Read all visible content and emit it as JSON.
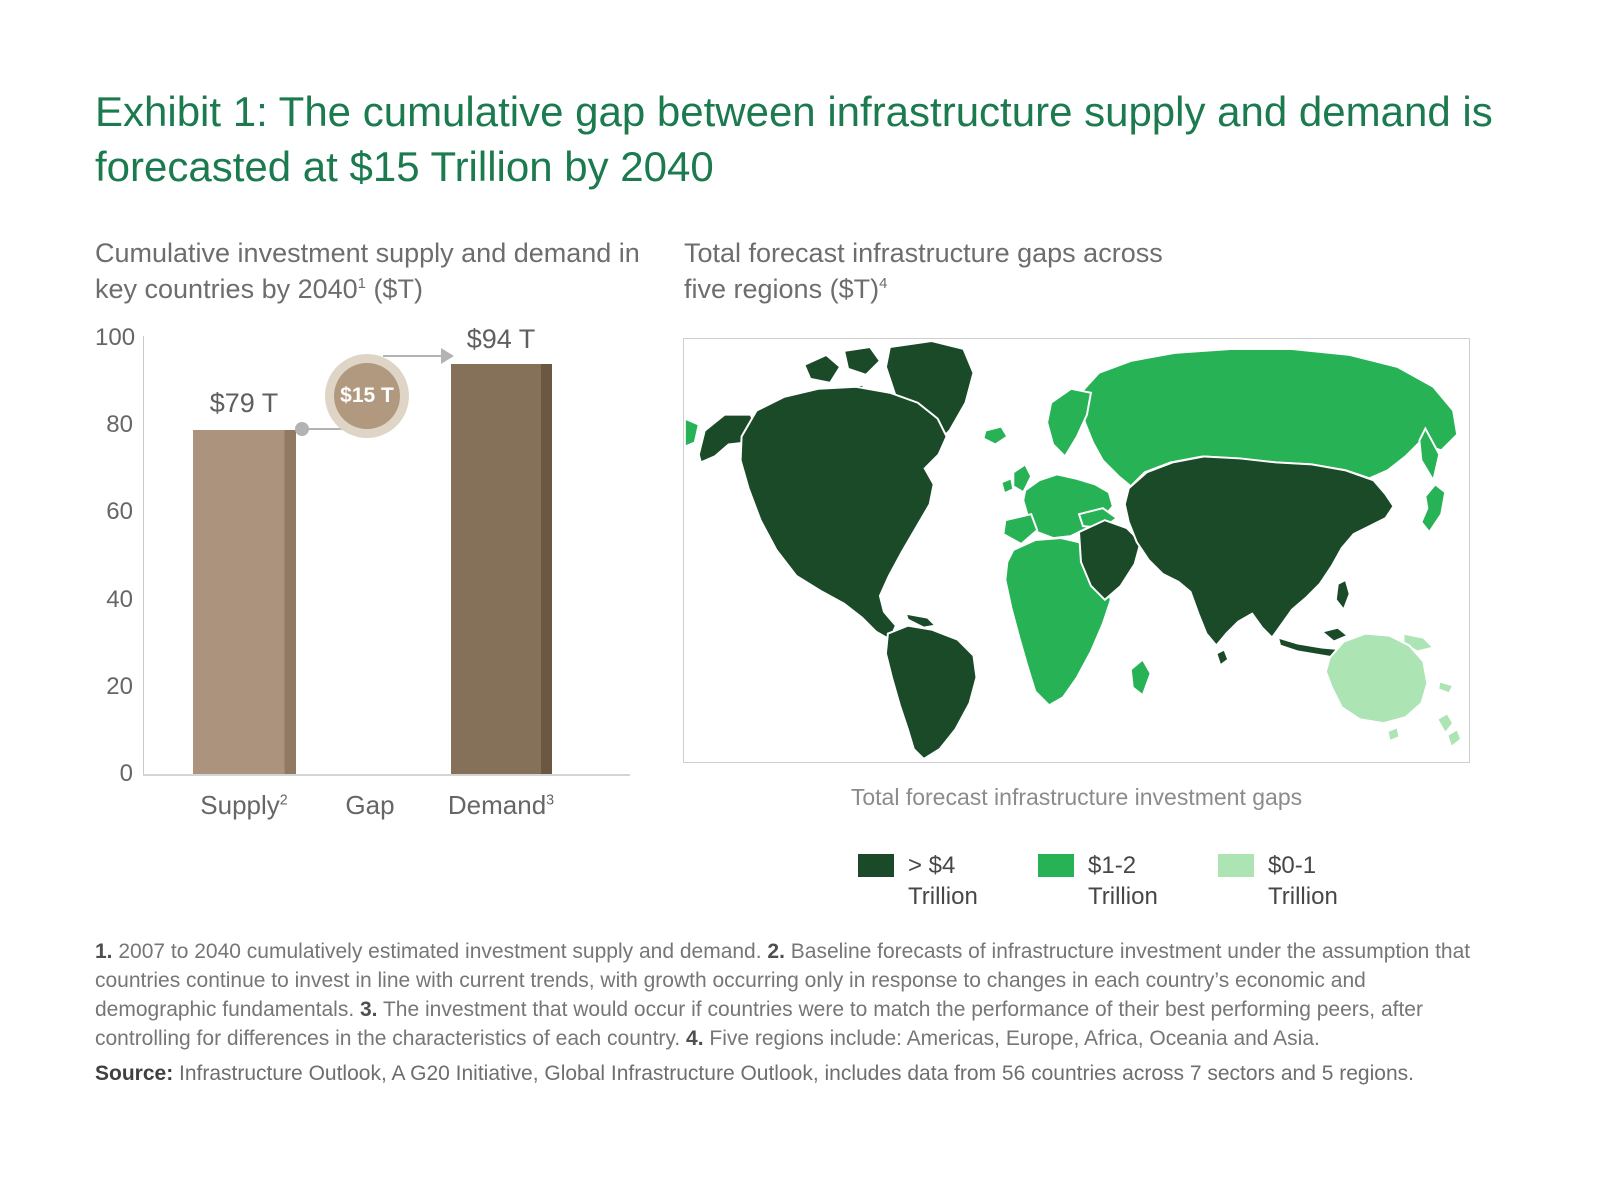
{
  "title": "Exhibit 1: The cumulative gap between infrastructure supply and demand is forecasted at $15 Trillion by 2040",
  "bar_section": {
    "subtitle": "Cumulative investment supply and demand in key countries by 2040",
    "subtitle_sup": "1",
    "subtitle_suffix": " ($T)"
  },
  "map_section": {
    "subtitle": "Total forecast infrastructure gaps across five regions ($T)",
    "subtitle_sup": "4",
    "caption": "Total forecast infrastructure investment gaps"
  },
  "chart_data": [
    {
      "type": "bar",
      "title": "Cumulative investment supply and demand in key countries by 2040 ($T)",
      "categories": [
        "Supply",
        "Gap",
        "Demand"
      ],
      "category_sups": [
        "2",
        "",
        "3"
      ],
      "values": [
        79,
        null,
        94
      ],
      "value_labels": [
        "$79 T",
        "",
        "$94 T"
      ],
      "gap_value": 15,
      "gap_label": "$15 T",
      "ylim": [
        0,
        100
      ],
      "yticks": [
        "0",
        "20",
        "40",
        "60",
        "80",
        "100"
      ],
      "grid": false,
      "colors": {
        "supply": "#ab937e",
        "supply_edge": "#907a63",
        "demand": "#85705a",
        "demand_edge": "#6b5843",
        "gap_circle": "#b1997f",
        "gap_ring": "#ded5c6",
        "connector": "#b3b3b3"
      }
    },
    {
      "type": "choropleth",
      "title": "Total forecast infrastructure gaps across five regions ($T)",
      "caption": "Total forecast infrastructure investment gaps",
      "regions": [
        {
          "name": "Americas",
          "category": "> $4 Trillion"
        },
        {
          "name": "Asia",
          "category": "> $4 Trillion"
        },
        {
          "name": "Europe",
          "category": "$1-2 Trillion"
        },
        {
          "name": "Africa",
          "category": "$1-2 Trillion"
        },
        {
          "name": "Oceania",
          "category": "$0-1 Trillion"
        }
      ],
      "legend": [
        {
          "line1": "> $4",
          "line2": "Trillion",
          "color": "#1b4a28"
        },
        {
          "line1": "$1-2",
          "line2": "Trillion",
          "color": "#27b255"
        },
        {
          "line1": "$0-1",
          "line2": "Trillion",
          "color": "#ace4b4"
        }
      ],
      "legend_position": "bottom"
    }
  ],
  "footnotes": {
    "n1": "1.",
    "t1": " 2007 to 2040 cumulatively estimated investment supply and demand. ",
    "n2": "2.",
    "t2": " Baseline forecasts of infrastructure investment under the assumption that countries continue to invest in line with current trends, with growth occurring only in response to changes in each country’s economic and demographic fundamentals. ",
    "n3": "3.",
    "t3": " The investment that would occur if countries were to match the performance of their best performing peers, after controlling for differences in the characteristics of each country. ",
    "n4": "4.",
    "t4": " Five regions include: Americas, Europe, Africa, Oceania and Asia."
  },
  "source": {
    "label": "Source:",
    "text": " Infrastructure Outlook, A G20 Initiative, Global Infrastructure Outlook, includes data from 56 countries across 7 sectors and 5 regions."
  }
}
